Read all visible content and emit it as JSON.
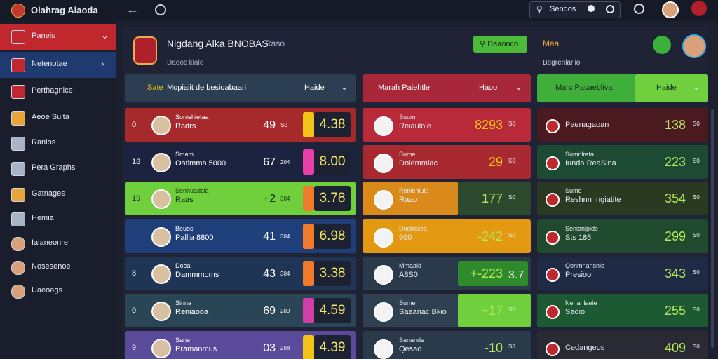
{
  "topbar": {
    "app_name": "Olahrag Alaoda",
    "search": "Sendos"
  },
  "sidebar": {
    "items": [
      "Paneis",
      "Netenotae",
      "Perthagnice",
      "Aeoe Suita",
      "Ranios",
      "Pera Graphs",
      "Gatnages",
      "Hemia",
      "Ialaneonre",
      "Nosesenoe",
      "Uaeoags"
    ]
  },
  "panel": {
    "title": "Nigdang Alka BNOBAS",
    "title_tag": "Raso",
    "subtitle": "Daeoc kiale",
    "button": "Daaonco",
    "side_title": "Maa",
    "side_subtitle": "Begrenlarlio"
  },
  "columns": [
    {
      "tag": "Sate",
      "header": "Mopiaiit de besioabaari",
      "filter": "Haide",
      "rows": [
        {
          "rank": "0",
          "name": "Soniehietaa",
          "sub": "Radrs",
          "score": "49",
          "small": "S0",
          "odds": "4.38"
        },
        {
          "rank": "18",
          "name": "Smam",
          "sub": "Oatimma 5000",
          "score": "67",
          "small": "204",
          "odds": "8.00"
        },
        {
          "rank": "19",
          "name": "Senhuadcia",
          "sub": "Raas",
          "score": "+2",
          "small": "304",
          "odds": "3.78"
        },
        {
          "name": "Beuoc",
          "sub": "Pallia 8800",
          "score": "41",
          "small": "304",
          "odds": "6.98"
        },
        {
          "rank": "8",
          "name": "Doea",
          "sub": "Dammmoms",
          "score": "43",
          "small": "304",
          "odds": "3.38"
        },
        {
          "rank": "0",
          "name": "Sinna",
          "sub": "Reniaooa",
          "score": "69",
          "small": "209",
          "odds": "4.59"
        },
        {
          "rank": "9",
          "name": "Sane",
          "sub": "Pramanmus",
          "score": "03",
          "small": "208",
          "odds": "4.39"
        }
      ]
    },
    {
      "header": "Marah Paiehtle",
      "filter": "Haoo",
      "rows": [
        {
          "name": "Suum",
          "sub": "Reiauloie",
          "score": "8293",
          "small": "S0"
        },
        {
          "name": "Sume",
          "sub": "Dolemmiac",
          "score": "29",
          "small": "S0"
        },
        {
          "name": "Renienluid",
          "sub": "Raao",
          "score": "177",
          "small": "S0"
        },
        {
          "name": "Dechiblea",
          "sub": "900",
          "score": "-242",
          "small": "S0"
        },
        {
          "name": "Mmaaid",
          "sub": "A8S0",
          "score": "+-223",
          "small": "3.7"
        },
        {
          "name": "Sume",
          "sub": "Saeanac Bkio",
          "score": "+17",
          "small": "S0"
        },
        {
          "name": "Sanande",
          "sub": "Qesao",
          "score": "-10",
          "small": "S0"
        }
      ]
    },
    {
      "header": "Marc Pacaebliva",
      "filter": "Haide",
      "rows": [
        {
          "name": "Paenagaoan",
          "score": "138",
          "small": "S0"
        },
        {
          "name": "Sumnlrafa",
          "sub": "Iunda ReaSina",
          "score": "223",
          "small": "S0"
        },
        {
          "name": "Sume",
          "sub": "Reshnn Ingiatite",
          "score": "354",
          "small": "S0"
        },
        {
          "name": "Senianlpide",
          "sub": "Sts 185",
          "score": "299",
          "small": "S0"
        },
        {
          "name": "Qonmnansnie",
          "sub": "Presioo",
          "score": "343",
          "small": "S0"
        },
        {
          "name": "Nenanlaeie",
          "sub": "Sadio",
          "score": "255",
          "small": "S0"
        },
        {
          "name": "Cedangeos",
          "score": "409",
          "small": "S0"
        }
      ]
    }
  ]
}
